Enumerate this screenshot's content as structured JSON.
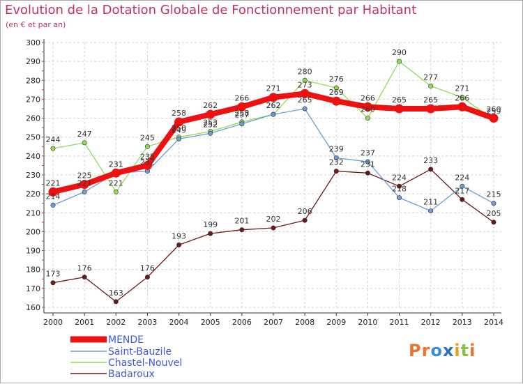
{
  "header": {
    "title": "Evolution de la Dotation Globale de Fonctionnement par Habitant",
    "subtitle": "(en € et par an)"
  },
  "logo": {
    "text": "Proxiti",
    "letter_colors": [
      "#e8732a",
      "#e8732a",
      "#3b8fd0",
      "#2a6fc0",
      "#e8a020",
      "#8ac040",
      "#e8732a"
    ]
  },
  "chart_data": {
    "type": "line",
    "title": "Evolution de la Dotation Globale de Fonctionnement par Habitant",
    "subtitle": "(en € et par an)",
    "x": [
      "2000",
      "2001",
      "2002",
      "2003",
      "2004",
      "2005",
      "2006",
      "2007",
      "2008",
      "2009",
      "2010",
      "2011",
      "2012",
      "2013",
      "2014"
    ],
    "ylim": [
      160,
      300
    ],
    "yticks": [
      160,
      170,
      180,
      190,
      200,
      210,
      220,
      230,
      240,
      250,
      260,
      270,
      280,
      290,
      300
    ],
    "grid": true,
    "legend_position": "bottom-left",
    "series": [
      {
        "name": "MENDE",
        "color": "#ee1111",
        "values": [
          221,
          225,
          231,
          235,
          258,
          262,
          266,
          271,
          273,
          269,
          266,
          265,
          265,
          266,
          260
        ]
      },
      {
        "name": "Saint-Bauzile",
        "color": "#6a9ed8",
        "values": [
          214,
          221,
          231,
          232,
          249,
          252,
          257,
          262,
          265,
          239,
          237,
          218,
          211,
          224,
          215
        ]
      },
      {
        "name": "Chastel-Nouvel",
        "color": "#90dd55",
        "values": [
          244,
          247,
          221,
          245,
          250,
          253,
          258,
          262,
          280,
          276,
          260,
          290,
          277,
          271,
          259
        ]
      },
      {
        "name": "Badaroux",
        "color": "#6b1818",
        "values": [
          173,
          176,
          163,
          176,
          193,
          199,
          201,
          202,
          206,
          232,
          231,
          224,
          233,
          217,
          205
        ]
      }
    ]
  }
}
